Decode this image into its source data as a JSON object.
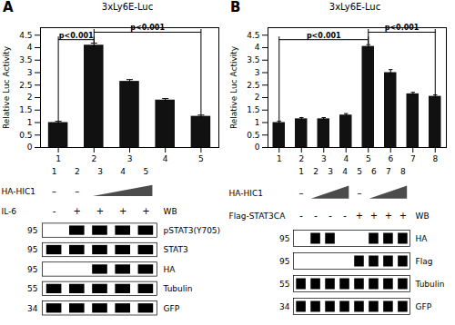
{
  "chart_data": [
    {
      "type": "bar",
      "panel": "A",
      "title": "3xLy6E-Luc",
      "categories": [
        "1",
        "2",
        "3",
        "4",
        "5"
      ],
      "values": [
        1.0,
        4.1,
        2.65,
        1.9,
        1.25
      ],
      "errors": [
        0.05,
        0.08,
        0.07,
        0.06,
        0.05
      ],
      "color": "#111111",
      "ylabel": "Relative Luc Activity",
      "ylim": [
        0,
        4.8
      ],
      "yticks": [
        0,
        0.5,
        1,
        1.5,
        2,
        2.5,
        3,
        3.5,
        4,
        4.5
      ],
      "significance": [
        {
          "from": "1",
          "to": "2",
          "y": 4.32,
          "label": "p<0.001"
        },
        {
          "from": "2",
          "to": "5",
          "y": 4.62,
          "label": "p<0.001"
        }
      ]
    },
    {
      "type": "bar",
      "panel": "B",
      "title": "3xLy6E-Luc",
      "categories": [
        "1",
        "2",
        "3",
        "4",
        "5",
        "6",
        "7",
        "8"
      ],
      "values": [
        1.0,
        1.15,
        1.15,
        1.3,
        4.05,
        3.0,
        2.15,
        2.05
      ],
      "errors": [
        0.06,
        0.05,
        0.05,
        0.06,
        0.07,
        0.12,
        0.06,
        0.06
      ],
      "color": "#111111",
      "ylabel": "Relative Luc Activity",
      "ylim": [
        0,
        4.8
      ],
      "yticks": [
        0,
        0.5,
        1,
        1.5,
        2,
        2.5,
        3,
        3.5,
        4,
        4.5
      ],
      "significance": [
        {
          "from": "1",
          "to": "5",
          "y": 4.32,
          "label": "p<0.001"
        },
        {
          "from": "5",
          "to": "8",
          "y": 4.62,
          "label": "p<0.001"
        }
      ]
    },
    {
      "type": "blot",
      "categories": [
        "1",
        "2",
        "3",
        "4",
        "5"
      ],
      "conditions": [
        {
          "name": "HA-HIC1",
          "values": [
            "–",
            "–",
            null,
            null,
            null
          ],
          "ramps": [
            [
              "3",
              "5"
            ]
          ]
        },
        {
          "name": "IL-6",
          "values": [
            "-",
            "+",
            "+",
            "+",
            "+"
          ],
          "annotation": "WB"
        }
      ],
      "series": [
        {
          "name": "pSTAT3(Y705)",
          "mw": 95,
          "values": [
            0,
            1,
            1,
            1,
            1
          ]
        },
        {
          "name": "STAT3",
          "mw": 95,
          "values": [
            1,
            1,
            1,
            1,
            1
          ]
        },
        {
          "name": "HA",
          "mw": 95,
          "values": [
            0,
            0,
            1,
            1,
            1
          ]
        },
        {
          "name": "Tubulin",
          "mw": 55,
          "values": [
            1,
            1,
            1,
            1,
            1
          ]
        },
        {
          "name": "GFP",
          "mw": 34,
          "values": [
            1,
            1,
            1,
            1,
            1
          ]
        }
      ]
    },
    {
      "type": "blot",
      "categories": [
        "1",
        "2",
        "3",
        "4",
        "5",
        "6",
        "7",
        "8"
      ],
      "conditions": [
        {
          "name": "HA-HIC1",
          "values": [
            "–",
            null,
            null,
            null,
            "–",
            null,
            null,
            null
          ],
          "ramps": [
            [
              "2",
              "4"
            ],
            [
              "6",
              "8"
            ]
          ]
        },
        {
          "name": "Flag-STAT3CA",
          "values": [
            "-",
            "-",
            "-",
            "-",
            "+",
            "+",
            "+",
            "+"
          ],
          "annotation": "WB"
        }
      ],
      "series": [
        {
          "name": "HA",
          "mw": 95,
          "values": [
            0,
            1,
            1,
            0,
            0,
            1,
            1,
            1
          ]
        },
        {
          "name": "Flag",
          "mw": 95,
          "values": [
            0,
            0,
            0,
            0,
            1,
            1,
            1,
            1
          ]
        },
        {
          "name": "Tubulin",
          "mw": 55,
          "values": [
            1,
            1,
            1,
            1,
            1,
            1,
            1,
            1
          ]
        },
        {
          "name": "GFP",
          "mw": 34,
          "values": [
            1,
            1,
            1,
            1,
            1,
            1,
            1,
            1
          ]
        }
      ]
    }
  ]
}
